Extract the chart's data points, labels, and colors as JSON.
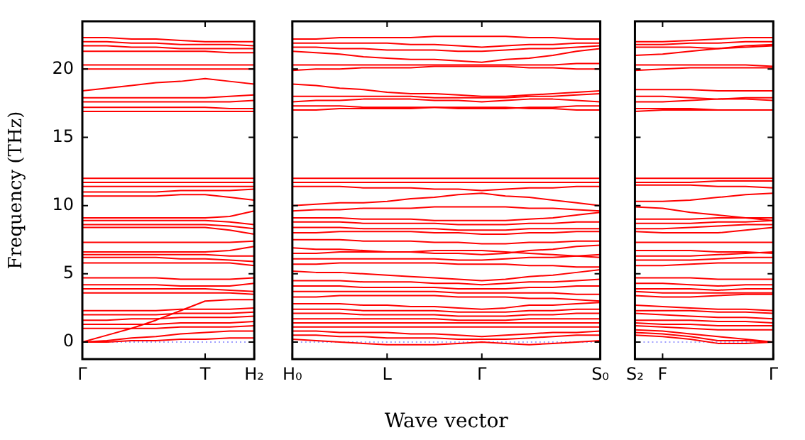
{
  "chart_data": [
    {
      "type": "line",
      "ylabel": "Frequency (THz)",
      "categories": [
        "Γ",
        null,
        null,
        null,
        null,
        "T",
        null,
        "H₂"
      ],
      "ylim": [
        -1.25,
        23.5
      ],
      "yticks": [
        0,
        5,
        10,
        15,
        20
      ],
      "grid": false,
      "legend": false,
      "marker": "none",
      "line_style": "solid",
      "ref_lines": [
        {
          "axis": "y",
          "value": 0,
          "label": null,
          "color": "#8080ff",
          "line_style": "dotted"
        }
      ],
      "series": [
        {
          "color": "#ff0000",
          "values": [
            22.3,
            22.3,
            22.2,
            22.2,
            22.1,
            22.0,
            22.0,
            22.0
          ]
        },
        {
          "color": "#ff0000",
          "values": [
            22.0,
            22.0,
            21.9,
            21.9,
            21.8,
            21.8,
            21.8,
            21.7
          ]
        },
        {
          "color": "#ff0000",
          "values": [
            21.7,
            21.7,
            21.6,
            21.6,
            21.5,
            21.5,
            21.5,
            21.5
          ]
        },
        {
          "color": "#ff0000",
          "values": [
            21.3,
            21.3,
            21.3,
            21.3,
            21.3,
            21.3,
            21.2,
            21.2
          ]
        },
        {
          "color": "#ff0000",
          "values": [
            20.3,
            20.3,
            20.3,
            20.3,
            20.3,
            20.3,
            20.3,
            20.3
          ]
        },
        {
          "color": "#ff0000",
          "values": [
            20.0,
            20.0,
            20.0,
            20.0,
            20.0,
            20.0,
            20.0,
            20.0
          ]
        },
        {
          "color": "#ff0000",
          "values": [
            18.4,
            18.6,
            18.8,
            19.0,
            19.1,
            19.3,
            19.1,
            18.9
          ]
        },
        {
          "color": "#ff0000",
          "values": [
            17.9,
            17.9,
            17.9,
            17.9,
            17.9,
            17.9,
            18.0,
            18.1
          ]
        },
        {
          "color": "#ff0000",
          "values": [
            17.6,
            17.6,
            17.6,
            17.6,
            17.6,
            17.6,
            17.6,
            17.7
          ]
        },
        {
          "color": "#ff0000",
          "values": [
            17.2,
            17.2,
            17.2,
            17.2,
            17.2,
            17.2,
            17.1,
            17.1
          ]
        },
        {
          "color": "#ff0000",
          "values": [
            16.9,
            16.9,
            16.9,
            16.9,
            16.9,
            16.9,
            16.9,
            16.9
          ]
        },
        {
          "color": "#ff0000",
          "values": [
            12.0,
            12.0,
            12.0,
            12.0,
            12.0,
            12.0,
            12.0,
            12.0
          ]
        },
        {
          "color": "#ff0000",
          "values": [
            11.7,
            11.7,
            11.7,
            11.7,
            11.7,
            11.7,
            11.7,
            11.7
          ]
        },
        {
          "color": "#ff0000",
          "values": [
            11.4,
            11.4,
            11.4,
            11.4,
            11.4,
            11.4,
            11.4,
            11.4
          ]
        },
        {
          "color": "#ff0000",
          "values": [
            11.0,
            11.0,
            11.0,
            11.0,
            11.1,
            11.1,
            11.1,
            11.2
          ]
        },
        {
          "color": "#ff0000",
          "values": [
            10.7,
            10.7,
            10.7,
            10.7,
            10.8,
            10.8,
            10.6,
            10.4
          ]
        },
        {
          "color": "#ff0000",
          "values": [
            9.1,
            9.1,
            9.1,
            9.1,
            9.1,
            9.1,
            9.2,
            9.6
          ]
        },
        {
          "color": "#ff0000",
          "values": [
            8.9,
            8.9,
            8.9,
            8.9,
            8.9,
            8.9,
            8.8,
            8.6
          ]
        },
        {
          "color": "#ff0000",
          "values": [
            8.6,
            8.6,
            8.6,
            8.6,
            8.6,
            8.6,
            8.5,
            8.3
          ]
        },
        {
          "color": "#ff0000",
          "values": [
            8.4,
            8.4,
            8.4,
            8.4,
            8.4,
            8.4,
            8.2,
            7.9
          ]
        },
        {
          "color": "#ff0000",
          "values": [
            7.3,
            7.3,
            7.3,
            7.3,
            7.3,
            7.3,
            7.3,
            7.4
          ]
        },
        {
          "color": "#ff0000",
          "values": [
            6.6,
            6.6,
            6.6,
            6.6,
            6.6,
            6.6,
            6.7,
            7.0
          ]
        },
        {
          "color": "#ff0000",
          "values": [
            6.4,
            6.4,
            6.4,
            6.4,
            6.4,
            6.4,
            6.3,
            6.3
          ]
        },
        {
          "color": "#ff0000",
          "values": [
            6.2,
            6.2,
            6.2,
            6.2,
            6.1,
            6.1,
            6.0,
            5.9
          ]
        },
        {
          "color": "#ff0000",
          "values": [
            5.8,
            5.8,
            5.8,
            5.8,
            5.8,
            5.8,
            5.8,
            5.6
          ]
        },
        {
          "color": "#ff0000",
          "values": [
            4.7,
            4.7,
            4.7,
            4.7,
            4.6,
            4.6,
            4.6,
            4.7
          ]
        },
        {
          "color": "#ff0000",
          "values": [
            4.2,
            4.2,
            4.2,
            4.2,
            4.1,
            4.1,
            4.1,
            4.3
          ]
        },
        {
          "color": "#ff0000",
          "values": [
            3.9,
            3.9,
            3.9,
            3.9,
            3.9,
            3.9,
            3.8,
            3.7
          ]
        },
        {
          "color": "#ff0000",
          "values": [
            3.6,
            3.6,
            3.6,
            3.6,
            3.6,
            3.6,
            3.6,
            3.5
          ]
        },
        {
          "color": "#ff0000",
          "values": [
            2.3,
            2.3,
            2.3,
            2.3,
            2.4,
            2.4,
            2.4,
            2.5
          ]
        },
        {
          "color": "#ff0000",
          "values": [
            2.0,
            2.0,
            2.0,
            2.0,
            2.1,
            2.1,
            2.1,
            2.2
          ]
        },
        {
          "color": "#ff0000",
          "values": [
            1.6,
            1.6,
            1.7,
            1.7,
            1.8,
            1.8,
            1.8,
            1.9
          ]
        },
        {
          "color": "#ff0000",
          "values": [
            0,
            0.5,
            1.0,
            1.6,
            2.3,
            3.0,
            3.1,
            3.1
          ]
        },
        {
          "color": "#ff0000",
          "values": [
            1.3,
            1.3,
            1.3,
            1.3,
            1.4,
            1.4,
            1.4,
            1.5
          ]
        },
        {
          "color": "#ff0000",
          "values": [
            1.0,
            1.0,
            1.0,
            1.0,
            1.1,
            1.1,
            1.1,
            1.2
          ]
        },
        {
          "color": "#ff0000",
          "values": [
            0,
            0.1,
            0.3,
            0.4,
            0.6,
            0.7,
            0.8,
            0.8
          ]
        },
        {
          "color": "#ff0000",
          "values": [
            0,
            0.0,
            0.1,
            0.1,
            0.2,
            0.2,
            0.3,
            0.3
          ]
        }
      ]
    },
    {
      "type": "line",
      "xlabel": "Wave vector",
      "categories": [
        "H₀",
        null,
        null,
        null,
        "L",
        null,
        null,
        null,
        "Γ",
        null,
        null,
        null,
        null,
        "S₀"
      ],
      "ylim": [
        -1.25,
        23.5
      ],
      "yticks": [
        0,
        5,
        10,
        15,
        20
      ],
      "tick_labels": "x",
      "grid": false,
      "legend": false,
      "marker": "none",
      "line_style": "solid",
      "ref_lines": [
        {
          "axis": "y",
          "value": 0,
          "label": null,
          "color": "#8080ff",
          "line_style": "dotted"
        }
      ],
      "series": [
        {
          "color": "#ff0000",
          "values": [
            22.2,
            22.2,
            22.3,
            22.3,
            22.3,
            22.3,
            22.4,
            22.4,
            22.4,
            22.4,
            22.3,
            22.3,
            22.2,
            22.2
          ]
        },
        {
          "color": "#ff0000",
          "values": [
            21.9,
            21.9,
            21.9,
            21.9,
            21.9,
            21.8,
            21.8,
            21.7,
            21.6,
            21.7,
            21.8,
            21.8,
            21.9,
            21.9
          ]
        },
        {
          "color": "#ff0000",
          "values": [
            21.6,
            21.6,
            21.5,
            21.5,
            21.4,
            21.4,
            21.4,
            21.3,
            21.3,
            21.4,
            21.5,
            21.5,
            21.6,
            21.7
          ]
        },
        {
          "color": "#ff0000",
          "values": [
            21.3,
            21.2,
            21.1,
            20.9,
            20.8,
            20.7,
            20.7,
            20.6,
            20.5,
            20.7,
            20.8,
            21.0,
            21.3,
            21.5
          ]
        },
        {
          "color": "#ff0000",
          "values": [
            20.3,
            20.3,
            20.3,
            20.3,
            20.3,
            20.3,
            20.3,
            20.3,
            20.3,
            20.3,
            20.3,
            20.3,
            20.4,
            20.4
          ]
        },
        {
          "color": "#ff0000",
          "values": [
            19.9,
            20.0,
            20.0,
            20.1,
            20.1,
            20.1,
            20.2,
            20.2,
            20.2,
            20.2,
            20.1,
            20.1,
            20.0,
            20.0
          ]
        },
        {
          "color": "#ff0000",
          "values": [
            18.9,
            18.8,
            18.6,
            18.5,
            18.3,
            18.2,
            18.2,
            18.1,
            18.0,
            18.0,
            18.1,
            18.2,
            18.3,
            18.4
          ]
        },
        {
          "color": "#ff0000",
          "values": [
            18.0,
            18.0,
            18.0,
            18.0,
            18.0,
            18.0,
            17.9,
            17.9,
            17.9,
            17.9,
            18.0,
            18.0,
            18.1,
            18.2
          ]
        },
        {
          "color": "#ff0000",
          "values": [
            17.6,
            17.7,
            17.7,
            17.8,
            17.8,
            17.8,
            17.7,
            17.7,
            17.6,
            17.7,
            17.8,
            17.8,
            17.7,
            17.6
          ]
        },
        {
          "color": "#ff0000",
          "values": [
            17.3,
            17.3,
            17.3,
            17.2,
            17.2,
            17.2,
            17.2,
            17.1,
            17.1,
            17.1,
            17.2,
            17.2,
            17.3,
            17.3
          ]
        },
        {
          "color": "#ff0000",
          "values": [
            17.0,
            17.0,
            17.1,
            17.1,
            17.1,
            17.1,
            17.2,
            17.2,
            17.2,
            17.2,
            17.1,
            17.1,
            17.0,
            17.0
          ]
        },
        {
          "color": "#ff0000",
          "values": [
            12.0,
            12.0,
            12.0,
            12.0,
            12.0,
            12.0,
            12.0,
            12.0,
            12.0,
            12.0,
            12.0,
            12.0,
            12.0,
            12.0
          ]
        },
        {
          "color": "#ff0000",
          "values": [
            11.7,
            11.7,
            11.7,
            11.7,
            11.7,
            11.7,
            11.7,
            11.7,
            11.7,
            11.7,
            11.7,
            11.7,
            11.7,
            11.7
          ]
        },
        {
          "color": "#ff0000",
          "values": [
            11.4,
            11.4,
            11.4,
            11.3,
            11.3,
            11.3,
            11.2,
            11.2,
            11.1,
            11.2,
            11.3,
            11.3,
            11.4,
            11.4
          ]
        },
        {
          "color": "#ff0000",
          "values": [
            10.0,
            10.1,
            10.2,
            10.2,
            10.3,
            10.5,
            10.6,
            10.8,
            10.9,
            10.7,
            10.6,
            10.4,
            10.2,
            10.0
          ]
        },
        {
          "color": "#ff0000",
          "values": [
            9.6,
            9.7,
            9.7,
            9.8,
            9.8,
            9.8,
            9.9,
            9.9,
            9.9,
            9.9,
            9.8,
            9.8,
            9.7,
            9.6
          ]
        },
        {
          "color": "#ff0000",
          "values": [
            9.1,
            9.1,
            9.1,
            9.0,
            9.0,
            9.0,
            8.9,
            8.9,
            8.9,
            8.9,
            9.0,
            9.1,
            9.3,
            9.5
          ]
        },
        {
          "color": "#ff0000",
          "values": [
            8.8,
            8.8,
            8.8,
            8.7,
            8.7,
            8.7,
            8.7,
            8.6,
            8.6,
            8.6,
            8.7,
            8.7,
            8.8,
            8.8
          ]
        },
        {
          "color": "#ff0000",
          "values": [
            8.4,
            8.4,
            8.4,
            8.3,
            8.3,
            8.3,
            8.3,
            8.2,
            8.2,
            8.2,
            8.3,
            8.3,
            8.3,
            8.3
          ]
        },
        {
          "color": "#ff0000",
          "values": [
            8.0,
            8.0,
            8.1,
            8.1,
            8.1,
            8.1,
            8.0,
            8.0,
            7.9,
            7.9,
            8.0,
            8.0,
            8.1,
            8.1
          ]
        },
        {
          "color": "#ff0000",
          "values": [
            7.5,
            7.5,
            7.5,
            7.4,
            7.4,
            7.4,
            7.3,
            7.3,
            7.2,
            7.2,
            7.3,
            7.3,
            7.4,
            7.4
          ]
        },
        {
          "color": "#ff0000",
          "values": [
            6.9,
            6.8,
            6.8,
            6.7,
            6.6,
            6.6,
            6.5,
            6.5,
            6.4,
            6.5,
            6.7,
            6.8,
            7.0,
            7.1
          ]
        },
        {
          "color": "#ff0000",
          "values": [
            6.5,
            6.5,
            6.6,
            6.6,
            6.6,
            6.6,
            6.7,
            6.7,
            6.7,
            6.6,
            6.5,
            6.4,
            6.3,
            6.2
          ]
        },
        {
          "color": "#ff0000",
          "values": [
            6.1,
            6.1,
            6.1,
            6.1,
            6.1,
            6.1,
            6.1,
            6.0,
            6.0,
            6.1,
            6.2,
            6.2,
            6.3,
            6.4
          ]
        },
        {
          "color": "#ff0000",
          "values": [
            5.7,
            5.7,
            5.8,
            5.8,
            5.8,
            5.8,
            5.8,
            5.7,
            5.7,
            5.7,
            5.6,
            5.6,
            5.5,
            5.5
          ]
        },
        {
          "color": "#ff0000",
          "values": [
            5.2,
            5.1,
            5.1,
            5.0,
            4.9,
            4.8,
            4.7,
            4.6,
            4.5,
            4.6,
            4.8,
            4.9,
            5.1,
            5.3
          ]
        },
        {
          "color": "#ff0000",
          "values": [
            4.5,
            4.5,
            4.5,
            4.4,
            4.4,
            4.4,
            4.3,
            4.3,
            4.2,
            4.3,
            4.4,
            4.4,
            4.5,
            4.6
          ]
        },
        {
          "color": "#ff0000",
          "values": [
            4.1,
            4.1,
            4.1,
            4.0,
            4.0,
            4.0,
            4.0,
            3.9,
            3.9,
            3.9,
            4.0,
            4.0,
            4.1,
            4.1
          ]
        },
        {
          "color": "#ff0000",
          "values": [
            3.7,
            3.7,
            3.7,
            3.7,
            3.7,
            3.7,
            3.7,
            3.6,
            3.6,
            3.6,
            3.6,
            3.6,
            3.5,
            3.5
          ]
        },
        {
          "color": "#ff0000",
          "values": [
            3.3,
            3.3,
            3.4,
            3.4,
            3.4,
            3.4,
            3.4,
            3.3,
            3.3,
            3.3,
            3.2,
            3.2,
            3.1,
            3.0
          ]
        },
        {
          "color": "#ff0000",
          "values": [
            2.8,
            2.8,
            2.8,
            2.7,
            2.7,
            2.6,
            2.6,
            2.5,
            2.4,
            2.5,
            2.7,
            2.7,
            2.8,
            2.9
          ]
        },
        {
          "color": "#ff0000",
          "values": [
            2.4,
            2.4,
            2.4,
            2.3,
            2.3,
            2.3,
            2.3,
            2.2,
            2.2,
            2.2,
            2.3,
            2.3,
            2.4,
            2.4
          ]
        },
        {
          "color": "#ff0000",
          "values": [
            2.1,
            2.1,
            2.1,
            2.0,
            2.0,
            2.0,
            2.0,
            1.9,
            1.9,
            1.9,
            2.0,
            2.0,
            2.1,
            2.1
          ]
        },
        {
          "color": "#ff0000",
          "values": [
            1.7,
            1.7,
            1.7,
            1.7,
            1.7,
            1.7,
            1.7,
            1.6,
            1.6,
            1.6,
            1.7,
            1.7,
            1.7,
            1.7
          ]
        },
        {
          "color": "#ff0000",
          "values": [
            1.4,
            1.4,
            1.4,
            1.4,
            1.4,
            1.4,
            1.4,
            1.4,
            1.4,
            1.4,
            1.4,
            1.4,
            1.4,
            1.4
          ]
        },
        {
          "color": "#ff0000",
          "values": [
            1.1,
            1.1,
            1.1,
            1.1,
            1.1,
            1.1,
            1.1,
            1.1,
            1.1,
            1.1,
            1.1,
            1.1,
            1.1,
            1.1
          ]
        },
        {
          "color": "#ff0000",
          "values": [
            0.8,
            0.8,
            0.7,
            0.7,
            0.7,
            0.6,
            0.6,
            0.5,
            0.4,
            0.5,
            0.6,
            0.7,
            0.7,
            0.8
          ]
        },
        {
          "color": "#ff0000",
          "values": [
            0.5,
            0.5,
            0.4,
            0.4,
            0.3,
            0.3,
            0.3,
            0.2,
            0.2,
            0.2,
            0.3,
            0.4,
            0.5,
            0.5
          ]
        },
        {
          "color": "#ff0000",
          "values": [
            0.2,
            0.1,
            0.0,
            -0.1,
            -0.2,
            -0.2,
            -0.2,
            -0.1,
            0.0,
            -0.1,
            -0.2,
            -0.1,
            0.0,
            0.1
          ]
        }
      ]
    },
    {
      "type": "line",
      "categories": [
        "S₂",
        "F",
        null,
        null,
        null,
        "Γ"
      ],
      "ylim": [
        -1.25,
        23.5
      ],
      "yticks": [
        0,
        5,
        10,
        15,
        20
      ],
      "tick_labels": "x",
      "grid": false,
      "legend": false,
      "marker": "none",
      "line_style": "solid",
      "ref_lines": [
        {
          "axis": "y",
          "value": 0,
          "label": null,
          "color": "#8080ff",
          "line_style": "dotted"
        }
      ],
      "series": [
        {
          "color": "#ff0000",
          "values": [
            22.0,
            22.0,
            22.1,
            22.2,
            22.3,
            22.3
          ]
        },
        {
          "color": "#ff0000",
          "values": [
            21.8,
            21.8,
            21.9,
            21.9,
            22.0,
            22.0
          ]
        },
        {
          "color": "#ff0000",
          "values": [
            21.6,
            21.6,
            21.6,
            21.5,
            21.6,
            21.7
          ]
        },
        {
          "color": "#ff0000",
          "values": [
            21.0,
            21.1,
            21.3,
            21.5,
            21.7,
            21.8
          ]
        },
        {
          "color": "#ff0000",
          "values": [
            20.3,
            20.3,
            20.3,
            20.3,
            20.3,
            20.2
          ]
        },
        {
          "color": "#ff0000",
          "values": [
            19.9,
            20.0,
            20.1,
            20.1,
            20.1,
            20.1
          ]
        },
        {
          "color": "#ff0000",
          "values": [
            18.5,
            18.5,
            18.5,
            18.4,
            18.4,
            18.4
          ]
        },
        {
          "color": "#ff0000",
          "values": [
            18.0,
            18.0,
            17.9,
            17.8,
            17.8,
            17.7
          ]
        },
        {
          "color": "#ff0000",
          "values": [
            17.6,
            17.6,
            17.7,
            17.8,
            17.9,
            17.9
          ]
        },
        {
          "color": "#ff0000",
          "values": [
            17.1,
            17.1,
            17.1,
            17.0,
            17.0,
            17.0
          ]
        },
        {
          "color": "#ff0000",
          "values": [
            16.9,
            17.0,
            17.0,
            17.0,
            17.0,
            17.0
          ]
        },
        {
          "color": "#ff0000",
          "values": [
            12.0,
            12.0,
            12.0,
            12.0,
            12.0,
            12.0
          ]
        },
        {
          "color": "#ff0000",
          "values": [
            11.7,
            11.7,
            11.7,
            11.8,
            11.8,
            11.8
          ]
        },
        {
          "color": "#ff0000",
          "values": [
            11.5,
            11.5,
            11.5,
            11.4,
            11.4,
            11.3
          ]
        },
        {
          "color": "#ff0000",
          "values": [
            10.3,
            10.3,
            10.4,
            10.6,
            10.8,
            10.9
          ]
        },
        {
          "color": "#ff0000",
          "values": [
            9.9,
            9.8,
            9.5,
            9.3,
            9.1,
            8.9
          ]
        },
        {
          "color": "#ff0000",
          "values": [
            9.0,
            9.0,
            9.0,
            9.1,
            9.1,
            9.1
          ]
        },
        {
          "color": "#ff0000",
          "values": [
            8.7,
            8.7,
            8.7,
            8.8,
            8.8,
            8.9
          ]
        },
        {
          "color": "#ff0000",
          "values": [
            8.3,
            8.3,
            8.4,
            8.5,
            8.6,
            8.6
          ]
        },
        {
          "color": "#ff0000",
          "values": [
            8.1,
            8.0,
            8.0,
            8.0,
            8.2,
            8.4
          ]
        },
        {
          "color": "#ff0000",
          "values": [
            7.3,
            7.3,
            7.3,
            7.3,
            7.3,
            7.3
          ]
        },
        {
          "color": "#ff0000",
          "values": [
            6.7,
            6.7,
            6.7,
            6.6,
            6.6,
            6.5
          ]
        },
        {
          "color": "#ff0000",
          "values": [
            6.3,
            6.3,
            6.3,
            6.4,
            6.5,
            6.6
          ]
        },
        {
          "color": "#ff0000",
          "values": [
            6.0,
            6.0,
            6.0,
            6.1,
            6.2,
            6.2
          ]
        },
        {
          "color": "#ff0000",
          "values": [
            5.6,
            5.6,
            5.7,
            5.8,
            5.8,
            5.8
          ]
        },
        {
          "color": "#ff0000",
          "values": [
            4.7,
            4.7,
            4.7,
            4.6,
            4.6,
            4.6
          ]
        },
        {
          "color": "#ff0000",
          "values": [
            4.3,
            4.3,
            4.2,
            4.1,
            4.2,
            4.2
          ]
        },
        {
          "color": "#ff0000",
          "values": [
            3.9,
            3.9,
            3.9,
            3.8,
            3.9,
            3.9
          ]
        },
        {
          "color": "#ff0000",
          "values": [
            3.7,
            3.6,
            3.6,
            3.6,
            3.6,
            3.6
          ]
        },
        {
          "color": "#ff0000",
          "values": [
            3.4,
            3.3,
            3.3,
            3.4,
            3.5,
            3.5
          ]
        },
        {
          "color": "#ff0000",
          "values": [
            2.7,
            2.6,
            2.5,
            2.4,
            2.4,
            2.3
          ]
        },
        {
          "color": "#ff0000",
          "values": [
            2.3,
            2.3,
            2.3,
            2.2,
            2.2,
            2.1
          ]
        },
        {
          "color": "#ff0000",
          "values": [
            2.1,
            2.0,
            1.9,
            1.8,
            1.8,
            1.7
          ]
        },
        {
          "color": "#ff0000",
          "values": [
            1.6,
            1.6,
            1.6,
            1.5,
            1.5,
            1.4
          ]
        },
        {
          "color": "#ff0000",
          "values": [
            1.4,
            1.3,
            1.3,
            1.2,
            1.2,
            1.2
          ]
        },
        {
          "color": "#ff0000",
          "values": [
            1.2,
            1.1,
            1.0,
            0.9,
            0.9,
            0.9
          ]
        },
        {
          "color": "#ff0000",
          "values": [
            0.9,
            0.8,
            0.6,
            0.4,
            0.2,
            0.0
          ]
        },
        {
          "color": "#ff0000",
          "values": [
            0.7,
            0.6,
            0.4,
            0.1,
            0.1,
            0.0
          ]
        },
        {
          "color": "#ff0000",
          "values": [
            0.5,
            0.4,
            0.2,
            -0.1,
            -0.1,
            0.0
          ]
        }
      ]
    }
  ]
}
